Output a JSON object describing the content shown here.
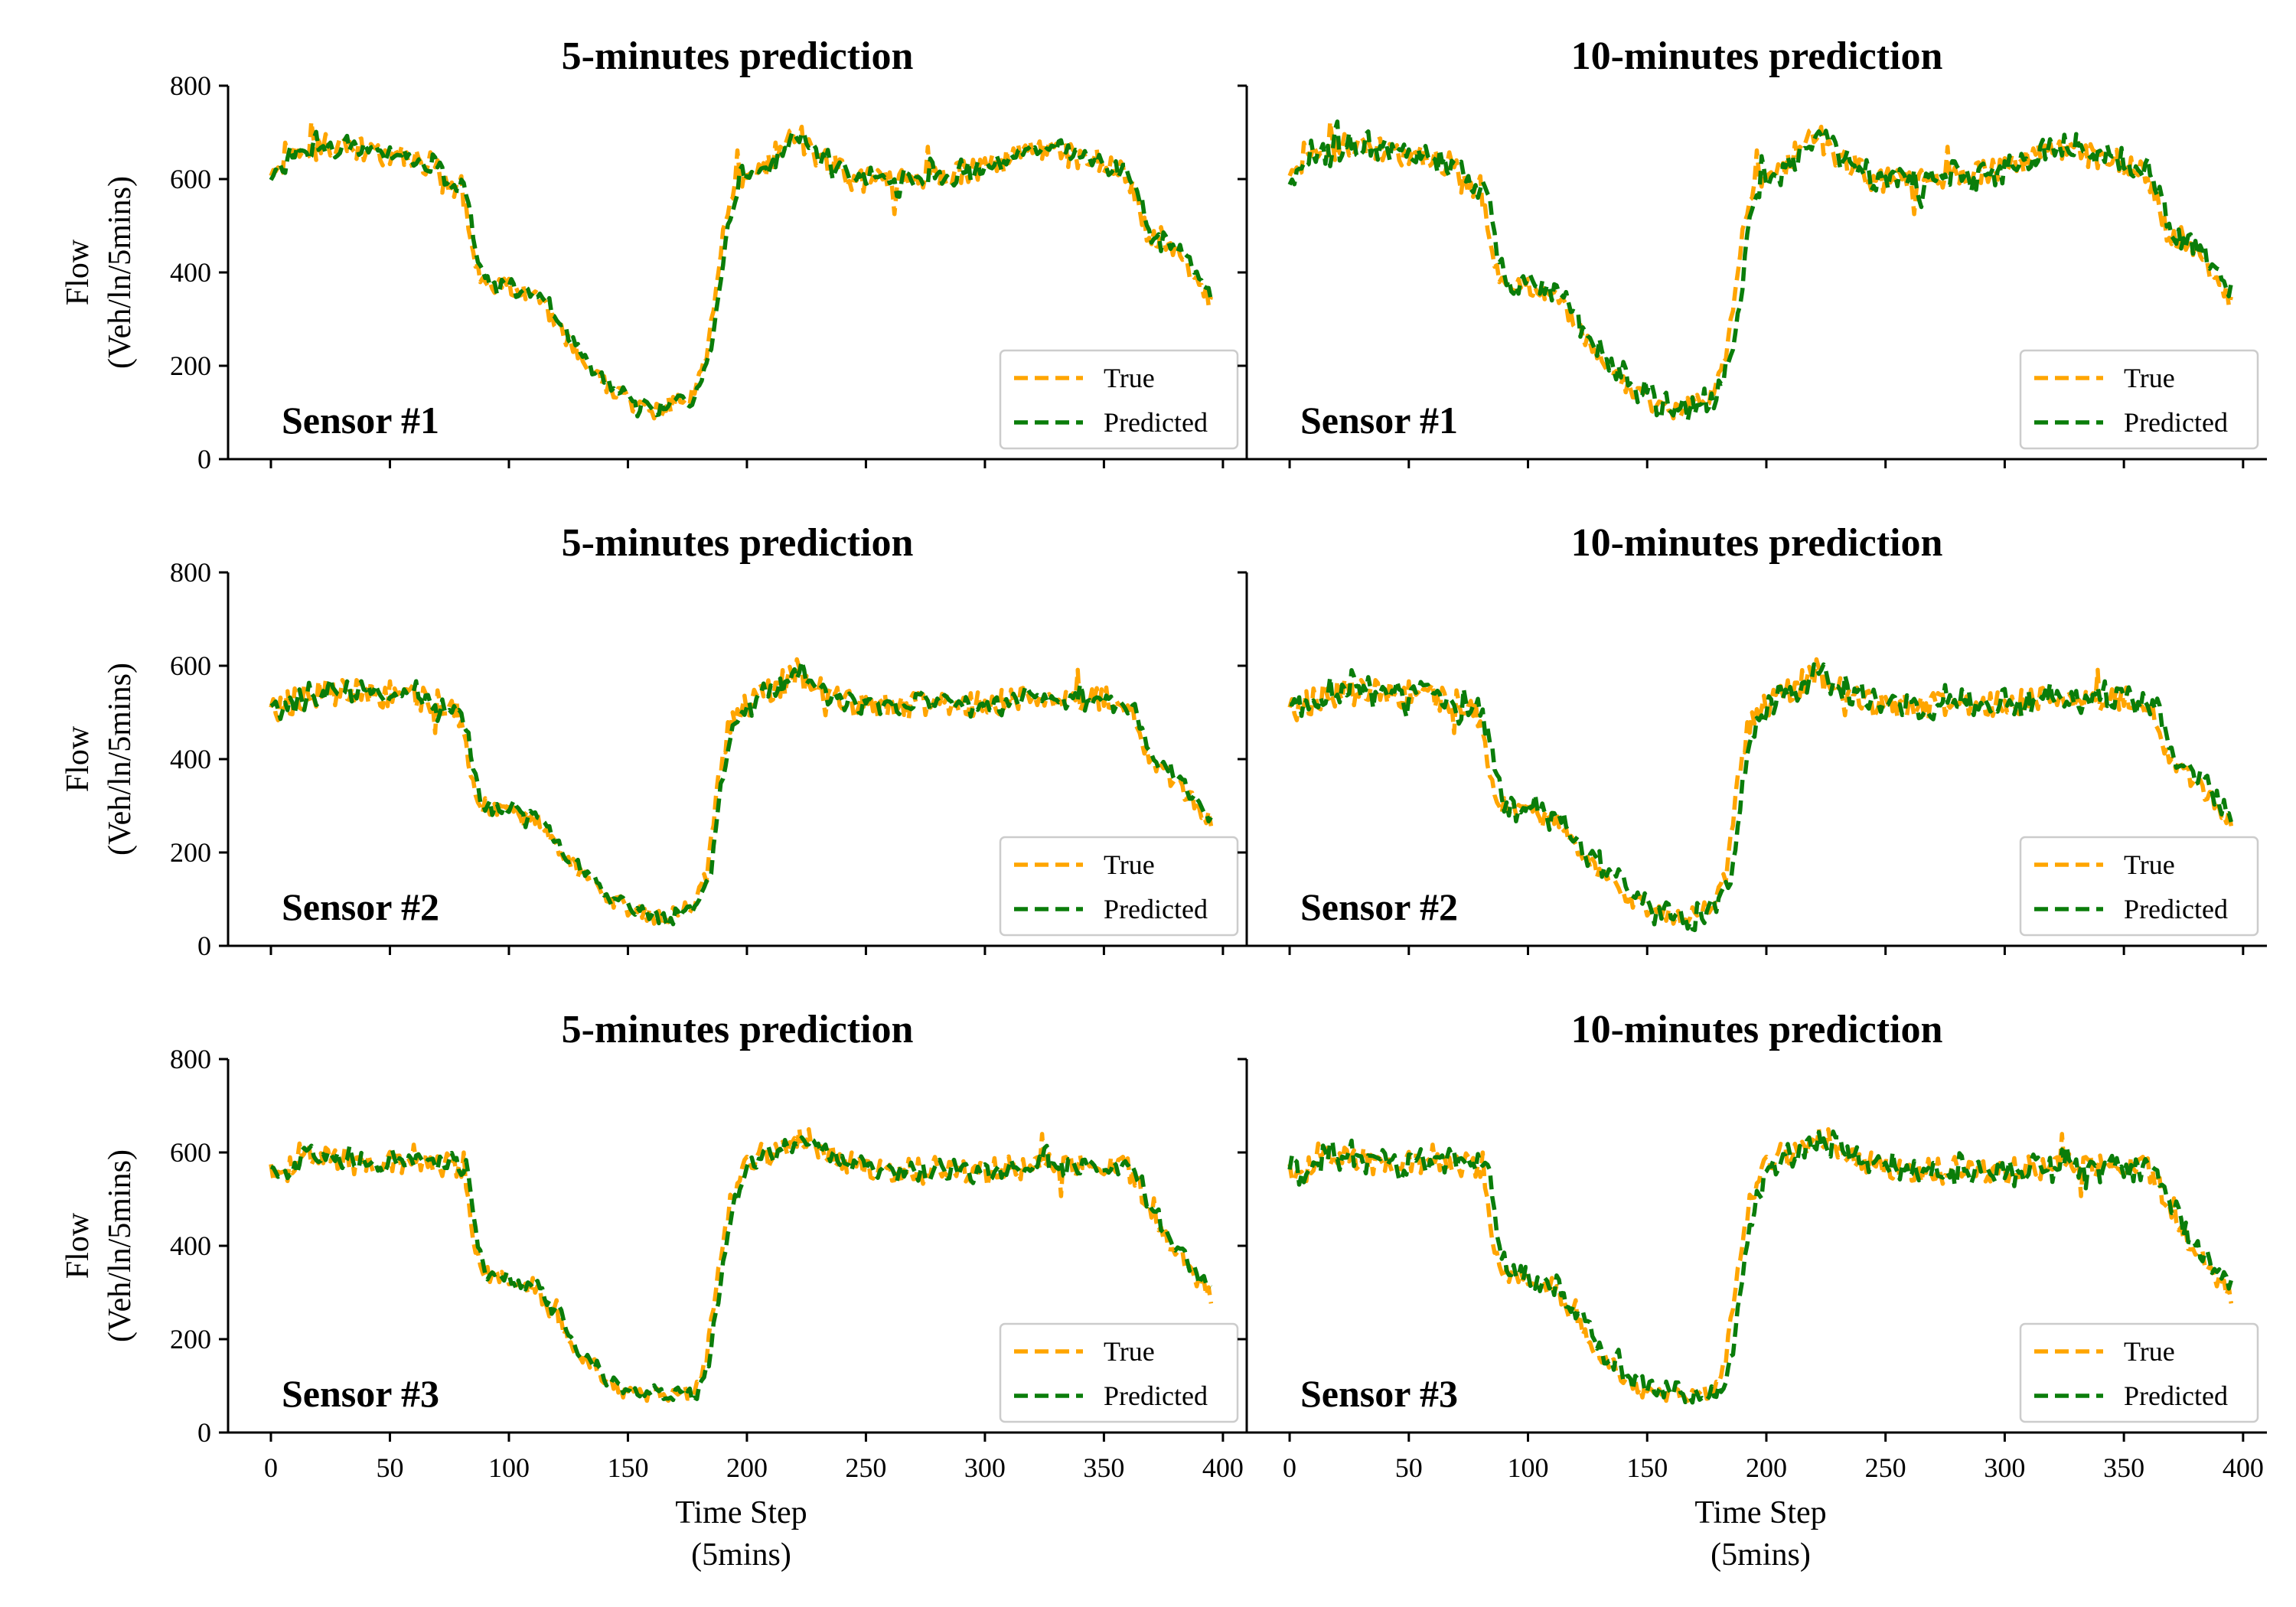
{
  "figure": {
    "ylabel_line1": "Flow",
    "ylabel_line2": "(Veh/ln/5mins)",
    "xlabel_line1": "Time Step",
    "xlabel_line2": "(5mins)",
    "legend": [
      "True",
      "Predicted"
    ],
    "colors": {
      "true": "#FFA500",
      "predicted": "#0A7D0A"
    }
  },
  "chart_data": [
    {
      "type": "line",
      "title": "5-minutes prediction",
      "annotation": "Sensor #1",
      "profile": "s1",
      "horizon": 1,
      "xlim": [
        -18,
        410
      ],
      "ylim": [
        0,
        800
      ],
      "xticks": [
        0,
        50,
        100,
        150,
        200,
        250,
        300,
        350,
        400
      ],
      "yticks": [
        0,
        200,
        400,
        600,
        800
      ],
      "legend_position": "lower-right",
      "series": [
        {
          "name": "True",
          "color": "#FFA500",
          "style": "dashed",
          "x_range": [
            0,
            395
          ]
        },
        {
          "name": "Predicted",
          "color": "#0A7D0A",
          "style": "dashed",
          "x_range": [
            0,
            395
          ]
        }
      ]
    },
    {
      "type": "line",
      "title": "10-minutes prediction",
      "annotation": "Sensor #1",
      "profile": "s1",
      "horizon": 2,
      "xlim": [
        -18,
        410
      ],
      "ylim": [
        0,
        800
      ],
      "xticks": [
        0,
        50,
        100,
        150,
        200,
        250,
        300,
        350,
        400
      ],
      "yticks": [
        0,
        200,
        400,
        600,
        800
      ],
      "legend_position": "lower-right",
      "series": [
        {
          "name": "True",
          "color": "#FFA500",
          "style": "dashed",
          "x_range": [
            0,
            395
          ]
        },
        {
          "name": "Predicted",
          "color": "#0A7D0A",
          "style": "dashed",
          "x_range": [
            0,
            395
          ]
        }
      ]
    },
    {
      "type": "line",
      "title": "5-minutes prediction",
      "annotation": "Sensor #2",
      "profile": "s2",
      "horizon": 1,
      "xlim": [
        -18,
        410
      ],
      "ylim": [
        0,
        800
      ],
      "xticks": [
        0,
        50,
        100,
        150,
        200,
        250,
        300,
        350,
        400
      ],
      "yticks": [
        0,
        200,
        400,
        600,
        800
      ],
      "legend_position": "lower-right",
      "series": [
        {
          "name": "True",
          "color": "#FFA500",
          "style": "dashed",
          "x_range": [
            0,
            395
          ]
        },
        {
          "name": "Predicted",
          "color": "#0A7D0A",
          "style": "dashed",
          "x_range": [
            0,
            395
          ]
        }
      ]
    },
    {
      "type": "line",
      "title": "10-minutes prediction",
      "annotation": "Sensor #2",
      "profile": "s2",
      "horizon": 2,
      "xlim": [
        -18,
        410
      ],
      "ylim": [
        0,
        800
      ],
      "xticks": [
        0,
        50,
        100,
        150,
        200,
        250,
        300,
        350,
        400
      ],
      "yticks": [
        0,
        200,
        400,
        600,
        800
      ],
      "legend_position": "lower-right",
      "series": [
        {
          "name": "True",
          "color": "#FFA500",
          "style": "dashed",
          "x_range": [
            0,
            395
          ]
        },
        {
          "name": "Predicted",
          "color": "#0A7D0A",
          "style": "dashed",
          "x_range": [
            0,
            395
          ]
        }
      ]
    },
    {
      "type": "line",
      "title": "5-minutes prediction",
      "annotation": "Sensor #3",
      "profile": "s3",
      "horizon": 1,
      "xlim": [
        -18,
        410
      ],
      "ylim": [
        0,
        800
      ],
      "xticks": [
        0,
        50,
        100,
        150,
        200,
        250,
        300,
        350,
        400
      ],
      "yticks": [
        0,
        200,
        400,
        600,
        800
      ],
      "legend_position": "lower-right",
      "series": [
        {
          "name": "True",
          "color": "#FFA500",
          "style": "dashed",
          "x_range": [
            0,
            395
          ]
        },
        {
          "name": "Predicted",
          "color": "#0A7D0A",
          "style": "dashed",
          "x_range": [
            0,
            395
          ]
        }
      ]
    },
    {
      "type": "line",
      "title": "10-minutes prediction",
      "annotation": "Sensor #3",
      "profile": "s3",
      "horizon": 2,
      "xlim": [
        -18,
        410
      ],
      "ylim": [
        0,
        800
      ],
      "xticks": [
        0,
        50,
        100,
        150,
        200,
        250,
        300,
        350,
        400
      ],
      "yticks": [
        0,
        200,
        400,
        600,
        800
      ],
      "legend_position": "lower-right",
      "series": [
        {
          "name": "True",
          "color": "#FFA500",
          "style": "dashed",
          "x_range": [
            0,
            395
          ]
        },
        {
          "name": "Predicted",
          "color": "#0A7D0A",
          "style": "dashed",
          "x_range": [
            0,
            395
          ]
        }
      ]
    }
  ],
  "profiles": {
    "s1": [
      [
        0,
        600
      ],
      [
        10,
        650
      ],
      [
        30,
        680
      ],
      [
        50,
        650
      ],
      [
        68,
        635
      ],
      [
        72,
        590
      ],
      [
        80,
        585
      ],
      [
        88,
        375
      ],
      [
        100,
        370
      ],
      [
        112,
        350
      ],
      [
        118,
        300
      ],
      [
        125,
        250
      ],
      [
        135,
        185
      ],
      [
        150,
        125
      ],
      [
        160,
        100
      ],
      [
        170,
        120
      ],
      [
        178,
        140
      ],
      [
        183,
        220
      ],
      [
        188,
        400
      ],
      [
        193,
        570
      ],
      [
        200,
        600
      ],
      [
        210,
        640
      ],
      [
        220,
        700
      ],
      [
        230,
        650
      ],
      [
        245,
        600
      ],
      [
        260,
        595
      ],
      [
        280,
        600
      ],
      [
        300,
        620
      ],
      [
        320,
        660
      ],
      [
        340,
        650
      ],
      [
        355,
        620
      ],
      [
        362,
        590
      ],
      [
        368,
        490
      ],
      [
        378,
        470
      ],
      [
        388,
        390
      ],
      [
        395,
        340
      ]
    ],
    "s2": [
      [
        0,
        500
      ],
      [
        15,
        540
      ],
      [
        40,
        545
      ],
      [
        60,
        535
      ],
      [
        70,
        520
      ],
      [
        78,
        500
      ],
      [
        88,
        300
      ],
      [
        100,
        295
      ],
      [
        112,
        275
      ],
      [
        118,
        230
      ],
      [
        128,
        170
      ],
      [
        140,
        110
      ],
      [
        150,
        80
      ],
      [
        165,
        60
      ],
      [
        178,
        90
      ],
      [
        183,
        150
      ],
      [
        188,
        350
      ],
      [
        193,
        480
      ],
      [
        205,
        540
      ],
      [
        220,
        575
      ],
      [
        235,
        545
      ],
      [
        250,
        510
      ],
      [
        270,
        515
      ],
      [
        300,
        520
      ],
      [
        330,
        530
      ],
      [
        355,
        535
      ],
      [
        362,
        500
      ],
      [
        368,
        410
      ],
      [
        380,
        350
      ],
      [
        395,
        270
      ]
    ],
    "s3": [
      [
        0,
        560
      ],
      [
        8,
        565
      ],
      [
        12,
        600
      ],
      [
        20,
        585
      ],
      [
        40,
        580
      ],
      [
        60,
        580
      ],
      [
        75,
        570
      ],
      [
        80,
        560
      ],
      [
        88,
        340
      ],
      [
        100,
        330
      ],
      [
        112,
        300
      ],
      [
        120,
        240
      ],
      [
        130,
        170
      ],
      [
        140,
        120
      ],
      [
        150,
        85
      ],
      [
        165,
        75
      ],
      [
        178,
        90
      ],
      [
        183,
        160
      ],
      [
        188,
        350
      ],
      [
        193,
        500
      ],
      [
        200,
        590
      ],
      [
        215,
        610
      ],
      [
        225,
        630
      ],
      [
        235,
        590
      ],
      [
        250,
        560
      ],
      [
        270,
        565
      ],
      [
        300,
        565
      ],
      [
        330,
        575
      ],
      [
        355,
        575
      ],
      [
        362,
        560
      ],
      [
        370,
        460
      ],
      [
        380,
        390
      ],
      [
        395,
        290
      ]
    ]
  }
}
